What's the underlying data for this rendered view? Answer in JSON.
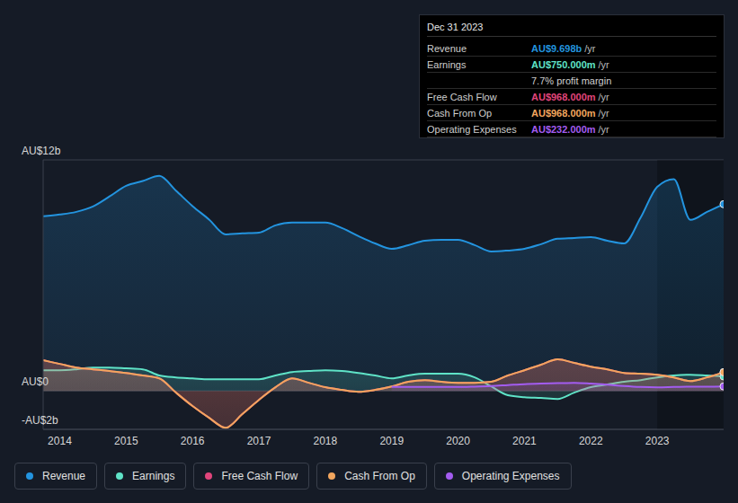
{
  "chart_data": {
    "type": "area",
    "x": [
      2013.75,
      2014,
      2014.25,
      2014.5,
      2014.75,
      2015,
      2015.25,
      2015.5,
      2015.75,
      2016,
      2016.25,
      2016.5,
      2016.75,
      2017,
      2017.25,
      2017.5,
      2017.75,
      2018,
      2018.25,
      2018.5,
      2018.75,
      2019,
      2019.25,
      2019.5,
      2019.75,
      2020,
      2020.25,
      2020.5,
      2020.75,
      2021,
      2021.25,
      2021.5,
      2021.75,
      2022,
      2022.25,
      2022.5,
      2022.75,
      2023,
      2023.25,
      2023.5,
      2023.75,
      2024
    ],
    "xlim": [
      2013.75,
      2024
    ],
    "xticks": [
      2014,
      2015,
      2016,
      2017,
      2018,
      2019,
      2020,
      2021,
      2022,
      2023
    ],
    "ylim": [
      -2,
      12
    ],
    "yticks": [
      {
        "value": -2,
        "label": "-AU$2b"
      },
      {
        "value": 0,
        "label": "AU$0"
      },
      {
        "value": 12,
        "label": "AU$12b"
      }
    ],
    "grid": true,
    "series": [
      {
        "name": "Revenue",
        "color": "#2394df",
        "values": [
          9.07,
          9.16,
          9.3,
          9.58,
          10.1,
          10.65,
          10.9,
          11.17,
          10.4,
          9.6,
          8.9,
          8.13,
          8.18,
          8.22,
          8.6,
          8.74,
          8.74,
          8.74,
          8.46,
          8.04,
          7.66,
          7.38,
          7.57,
          7.8,
          7.85,
          7.85,
          7.57,
          7.24,
          7.29,
          7.38,
          7.62,
          7.9,
          7.94,
          7.99,
          7.8,
          7.66,
          9.0,
          10.6,
          11.0,
          8.88,
          9.3,
          9.698
        ]
      },
      {
        "name": "Earnings",
        "color": "#5fe3c7",
        "values": [
          1.07,
          1.07,
          1.12,
          1.21,
          1.21,
          1.17,
          1.12,
          0.8,
          0.7,
          0.65,
          0.6,
          0.6,
          0.6,
          0.6,
          0.8,
          0.98,
          1.03,
          1.07,
          1.03,
          0.93,
          0.8,
          0.65,
          0.8,
          0.89,
          0.89,
          0.89,
          0.7,
          0.23,
          -0.23,
          -0.33,
          -0.37,
          -0.42,
          -0.09,
          0.19,
          0.33,
          0.47,
          0.56,
          0.7,
          0.8,
          0.84,
          0.8,
          0.75
        ]
      },
      {
        "name": "Free Cash Flow",
        "color": "#e0457b",
        "values": [
          1.59,
          1.4,
          1.21,
          1.12,
          1.03,
          0.93,
          0.8,
          0.65,
          -0.09,
          -0.79,
          -1.4,
          -1.92,
          -1.21,
          -0.47,
          0.19,
          0.65,
          0.42,
          0.19,
          0.05,
          -0.05,
          0.05,
          0.23,
          0.47,
          0.56,
          0.47,
          0.42,
          0.42,
          0.47,
          0.8,
          1.07,
          1.36,
          1.64,
          1.45,
          1.26,
          1.12,
          0.93,
          0.89,
          0.84,
          0.7,
          0.51,
          0.7,
          0.968
        ]
      },
      {
        "name": "Cash From Op",
        "color": "#f2a65e",
        "values": [
          1.59,
          1.4,
          1.21,
          1.12,
          1.03,
          0.93,
          0.8,
          0.65,
          -0.09,
          -0.79,
          -1.4,
          -1.92,
          -1.21,
          -0.47,
          0.19,
          0.65,
          0.42,
          0.19,
          0.05,
          -0.05,
          0.05,
          0.23,
          0.47,
          0.56,
          0.47,
          0.42,
          0.42,
          0.47,
          0.8,
          1.07,
          1.36,
          1.64,
          1.45,
          1.26,
          1.12,
          0.93,
          0.89,
          0.84,
          0.7,
          0.51,
          0.7,
          0.968
        ]
      },
      {
        "name": "Operating Expenses",
        "color": "#a35cf0",
        "values": [
          null,
          null,
          null,
          null,
          null,
          null,
          null,
          null,
          null,
          null,
          null,
          null,
          null,
          null,
          null,
          null,
          null,
          null,
          null,
          null,
          null,
          0.2,
          0.2,
          0.2,
          0.2,
          0.2,
          0.22,
          0.25,
          0.3,
          0.35,
          0.38,
          0.4,
          0.42,
          0.38,
          0.32,
          0.25,
          0.2,
          0.18,
          0.2,
          0.22,
          0.22,
          0.232
        ]
      }
    ],
    "info_box": {
      "title": "Dec 31 2023",
      "unit": "/yr",
      "note": "7.7% profit margin",
      "rows": [
        {
          "label": "Revenue",
          "value": "AU$9.698b",
          "color": "#2394df"
        },
        {
          "label": "Earnings",
          "value": "AU$750.000m",
          "color": "#5fe3c7"
        },
        {
          "label": "Free Cash Flow",
          "value": "AU$968.000m",
          "color": "#e0457b"
        },
        {
          "label": "Cash From Op",
          "value": "AU$968.000m",
          "color": "#f2a65e"
        },
        {
          "label": "Operating Expenses",
          "value": "AU$232.000m",
          "color": "#a35cf0"
        }
      ]
    }
  }
}
